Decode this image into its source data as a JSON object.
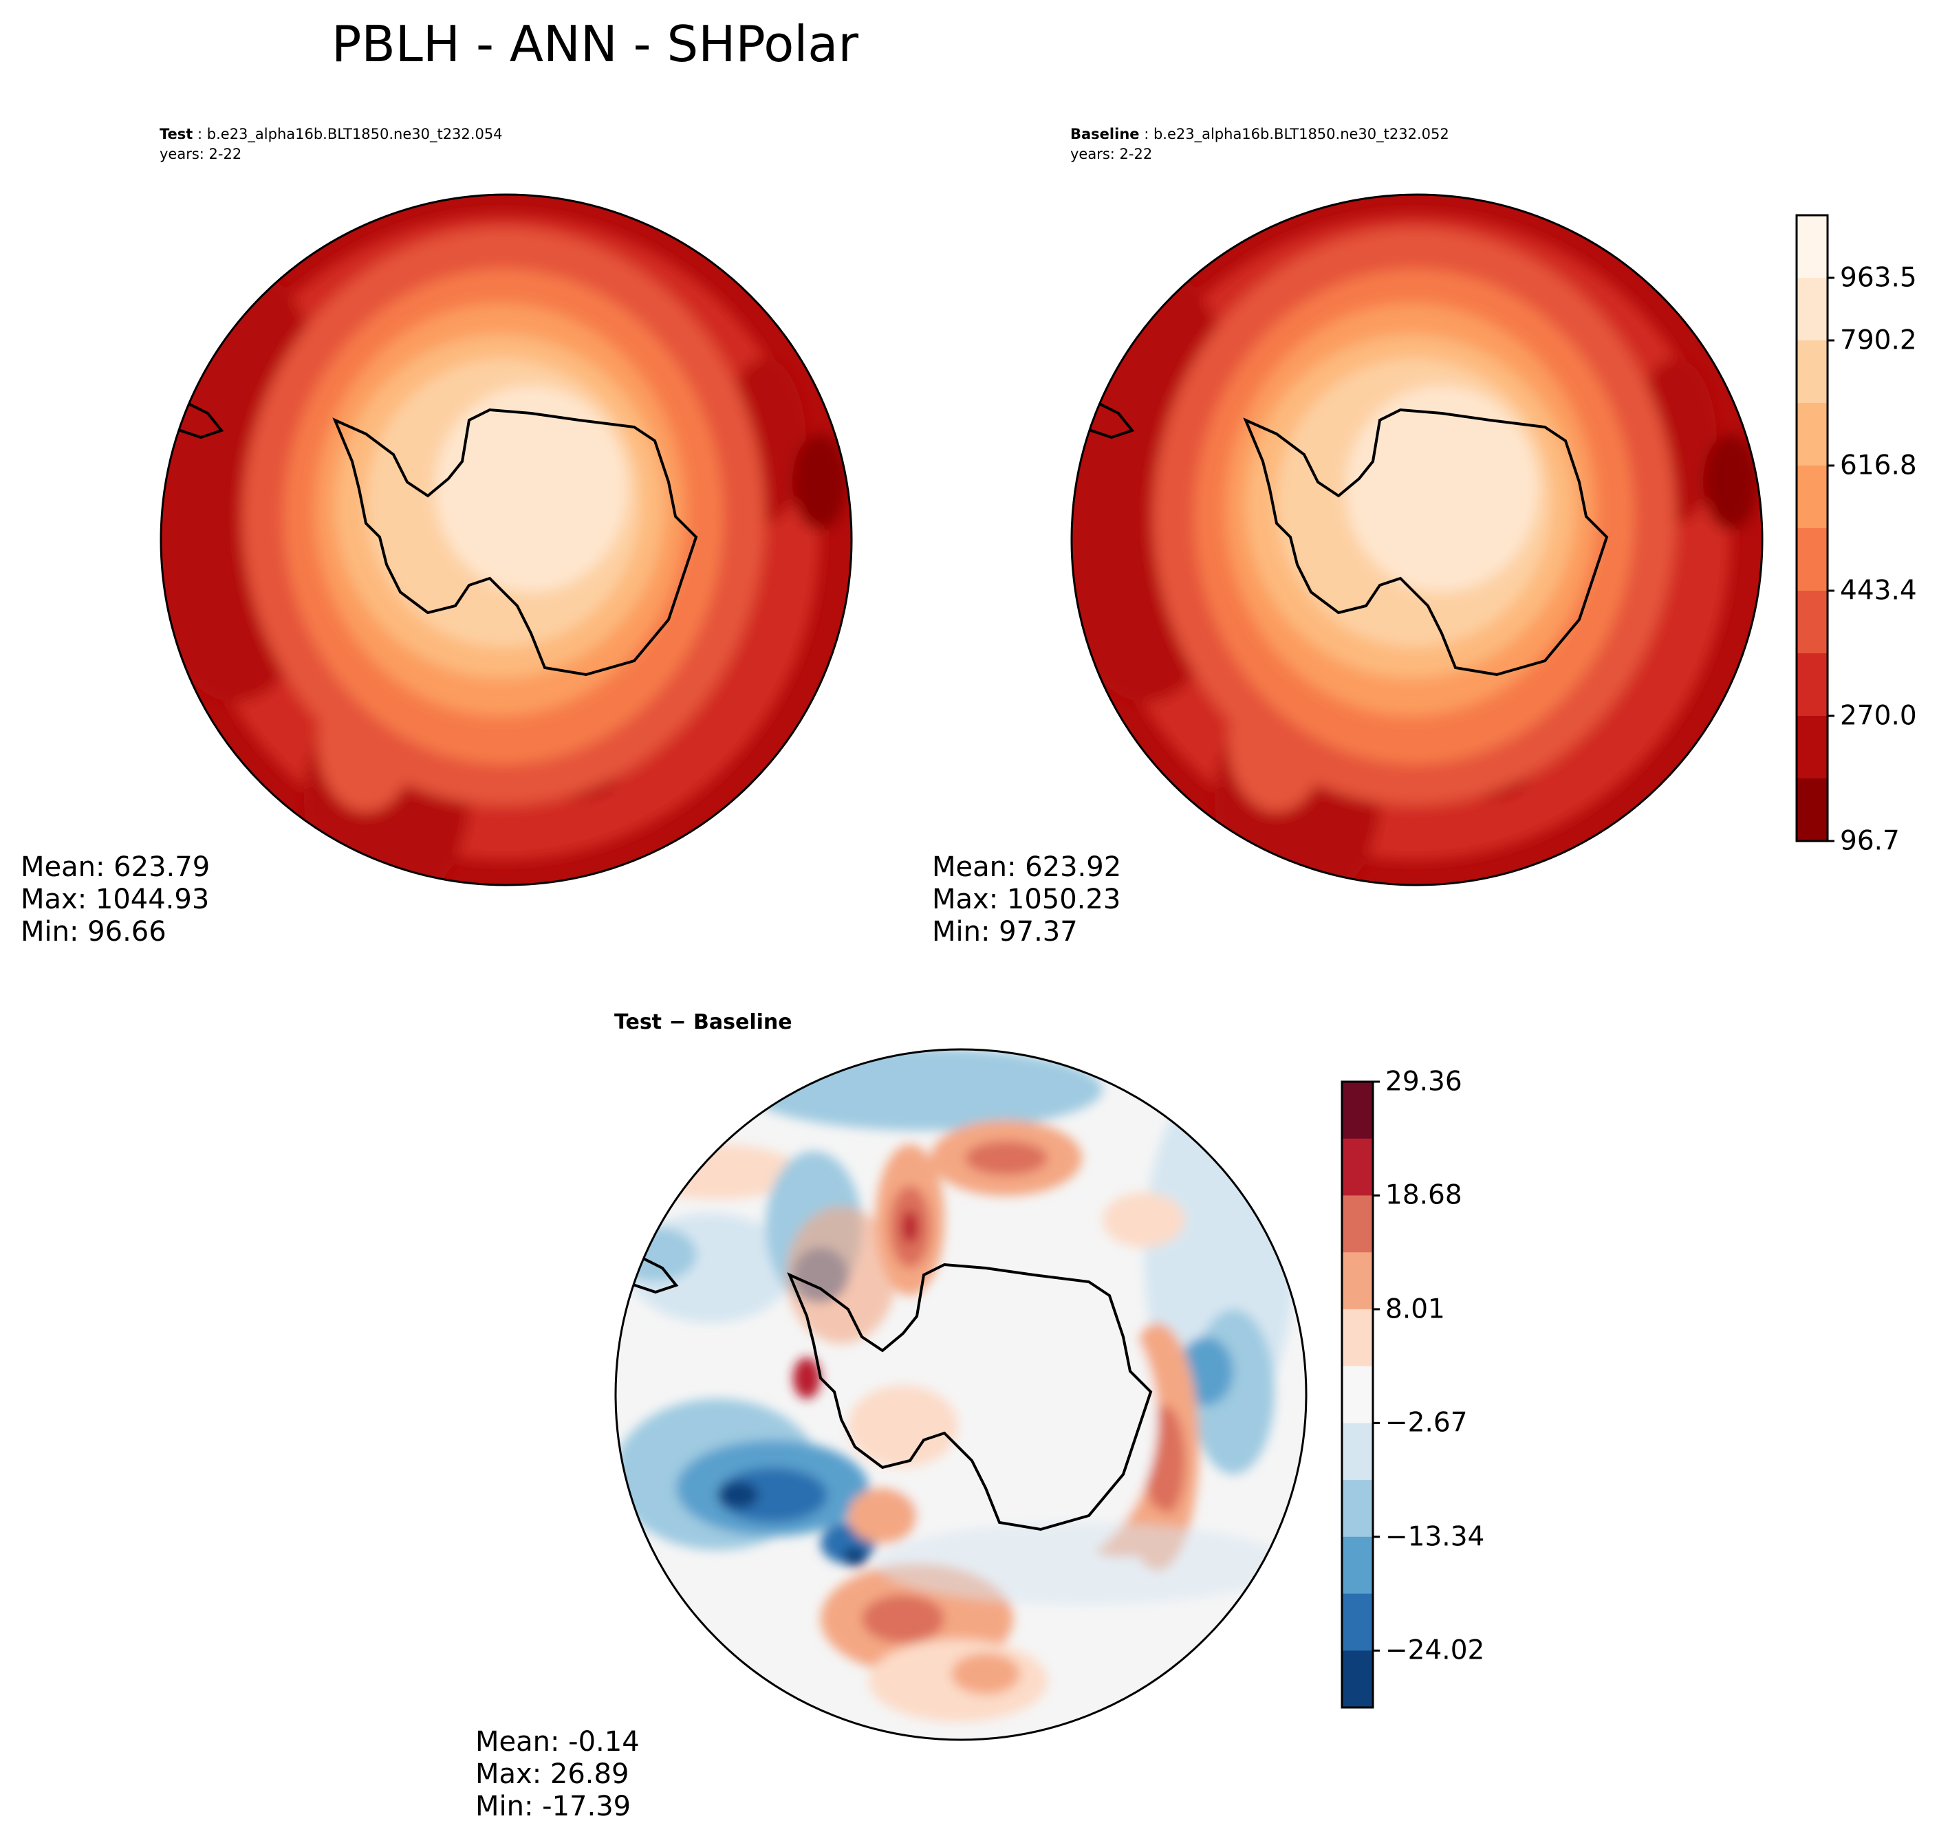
{
  "figure_title": "PBLH - ANN - SHPolar",
  "panels": {
    "test": {
      "label": "Test",
      "case": "b.e23_alpha16b.BLT1850.ne30_t232.054",
      "years": "years: 2-22",
      "mean": "Mean: 623.79",
      "max": "Max: 1044.93",
      "min": "Min: 96.66"
    },
    "baseline": {
      "label": "Baseline",
      "case": "b.e23_alpha16b.BLT1850.ne30_t232.052",
      "years": "years: 2-22",
      "mean": "Mean: 623.92",
      "max": "Max: 1050.23",
      "min": "Min: 97.37"
    },
    "diff": {
      "title": "Test − Baseline",
      "mean": "Mean: -0.14",
      "max": "Max: 26.89",
      "min": "Min: -17.39"
    }
  },
  "colorbars": {
    "main": {
      "tick_labels": [
        "96.7",
        "270.0",
        "443.4",
        "616.8",
        "790.2",
        "963.5"
      ],
      "colors": [
        "#fff5eb",
        "#fee6ce",
        "#fdd0a2",
        "#fdb97d",
        "#fc9c5e",
        "#f67a49",
        "#e5553a",
        "#d12a22",
        "#b40b0b",
        "#8a0000"
      ]
    },
    "diff": {
      "tick_labels": [
        "29.36",
        "18.68",
        "8.01",
        "−2.67",
        "−13.34",
        "−24.02"
      ],
      "colors": [
        "#6b0a22",
        "#b91e2e",
        "#dc6f5b",
        "#f4a783",
        "#fcdbc8",
        "#f7f7f7",
        "#d6e6f1",
        "#9fcae1",
        "#5aa0cd",
        "#2b6fb0",
        "#0d3f7a"
      ]
    }
  },
  "map_colors": {
    "test": [
      "#d12a22",
      "#e5553a",
      "#f67a49",
      "#fc9c5e",
      "#fdb97d",
      "#fdd0a2",
      "#fee6ce"
    ],
    "diff": {
      "neutral": "#f5f5f5",
      "light_blue": "#d6e6f1",
      "blue": "#9fcae1",
      "mid_blue": "#5aa0cd",
      "dark_blue": "#2b6fb0",
      "light_red": "#fcdbc8",
      "red": "#f4a783",
      "mid_red": "#dc6f5b",
      "dark_red": "#b91e2e"
    }
  }
}
